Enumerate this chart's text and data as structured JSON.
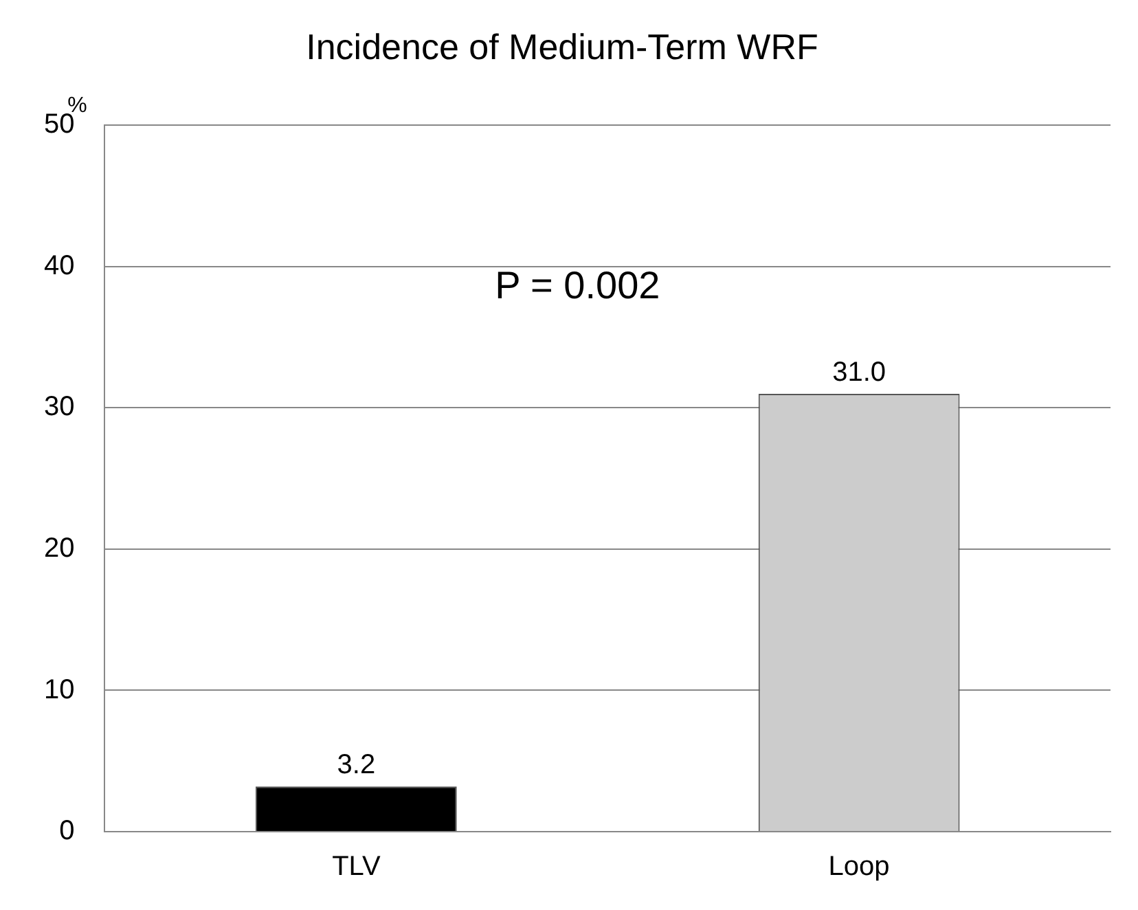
{
  "chart_data": {
    "type": "bar",
    "title": "Incidence of Medium-Term WRF",
    "ylabel": "%",
    "categories": [
      "TLV",
      "Loop"
    ],
    "values": [
      3.2,
      31.0
    ],
    "colors": [
      "#000000",
      "#cccccc"
    ],
    "value_labels": [
      "3.2",
      "31.0"
    ],
    "ylim": [
      0,
      50
    ],
    "yticks": [
      0,
      10,
      20,
      30,
      40,
      50
    ],
    "grid": "y",
    "annotations": [
      "P = 0.002"
    ]
  }
}
